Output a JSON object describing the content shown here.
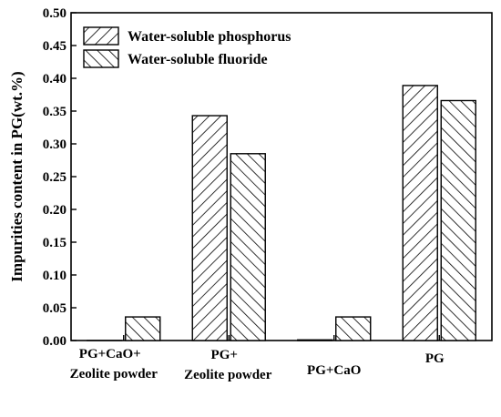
{
  "chart_data": {
    "type": "bar",
    "categories": [
      [
        "PG+CaO+",
        "Zeolite powder"
      ],
      [
        "PG+",
        "Zeolite powder"
      ],
      [
        "PG+CaO"
      ],
      [
        "PG"
      ]
    ],
    "series": [
      {
        "name": "Water-soluble phosphorus",
        "values": [
          0.0,
          0.343,
          0.001,
          0.389
        ],
        "pattern": "forward-hatch"
      },
      {
        "name": "Water-soluble fluoride",
        "values": [
          0.036,
          0.285,
          0.036,
          0.366
        ],
        "pattern": "back-hatch"
      }
    ],
    "ylabel": "Impurities content in PG(wt.%)",
    "xlabel": "",
    "ylim": [
      0.0,
      0.5
    ],
    "yticks": [
      0.0,
      0.05,
      0.1,
      0.15,
      0.2,
      0.25,
      0.3,
      0.35,
      0.4,
      0.45,
      0.5
    ],
    "ytick_labels": [
      "0.00",
      "0.05",
      "0.10",
      "0.15",
      "0.20",
      "0.25",
      "0.30",
      "0.35",
      "0.40",
      "0.45",
      "0.50"
    ],
    "legend_position": "top-left",
    "grid": false,
    "colors": {
      "bar_fill": "#ffffff",
      "stroke": "#000000"
    }
  }
}
